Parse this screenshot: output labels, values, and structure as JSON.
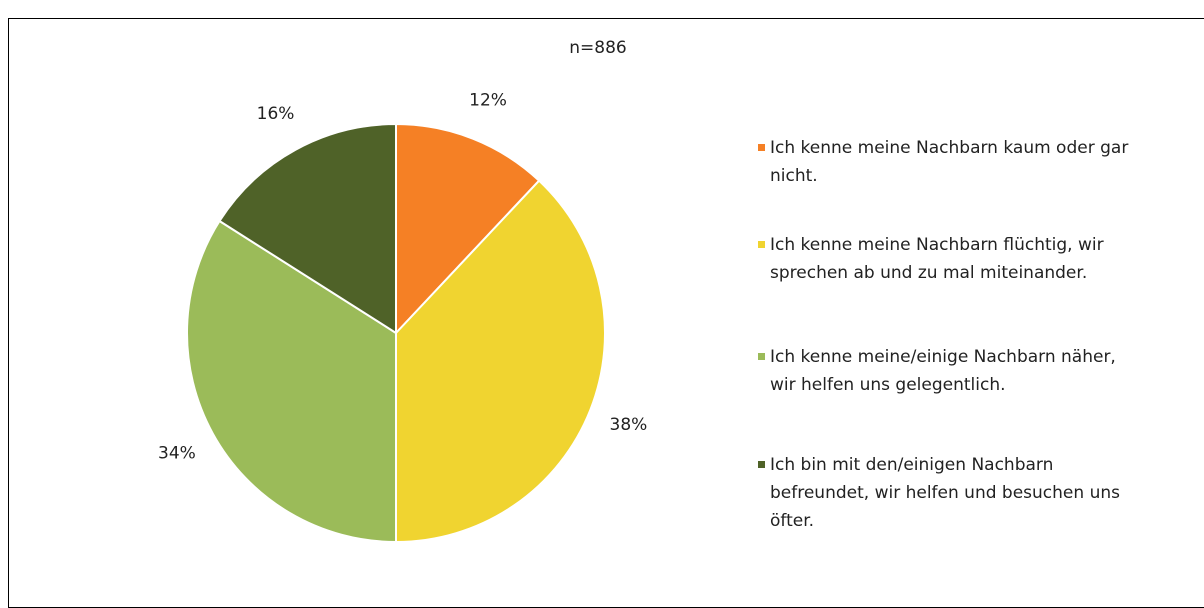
{
  "chart_data": {
    "type": "pie",
    "subtitle": "n=886",
    "categories": [
      "Ich kenne meine Nachbarn kaum oder gar nicht.",
      "Ich kenne meine Nachbarn flüchtig, wir sprechen ab und zu mal miteinander.",
      "Ich kenne meine/einige Nachbarn näher, wir helfen uns gelegentlich.",
      "Ich bin mit den/einigen Nachbarn befreundet, wir helfen und besuchen uns öfter."
    ],
    "values": [
      12,
      38,
      34,
      16
    ],
    "value_labels": [
      "12%",
      "38%",
      "34%",
      "16%"
    ],
    "colors": [
      "#f58025",
      "#f0d430",
      "#9bbb59",
      "#4f6228"
    ],
    "legend": "right"
  }
}
